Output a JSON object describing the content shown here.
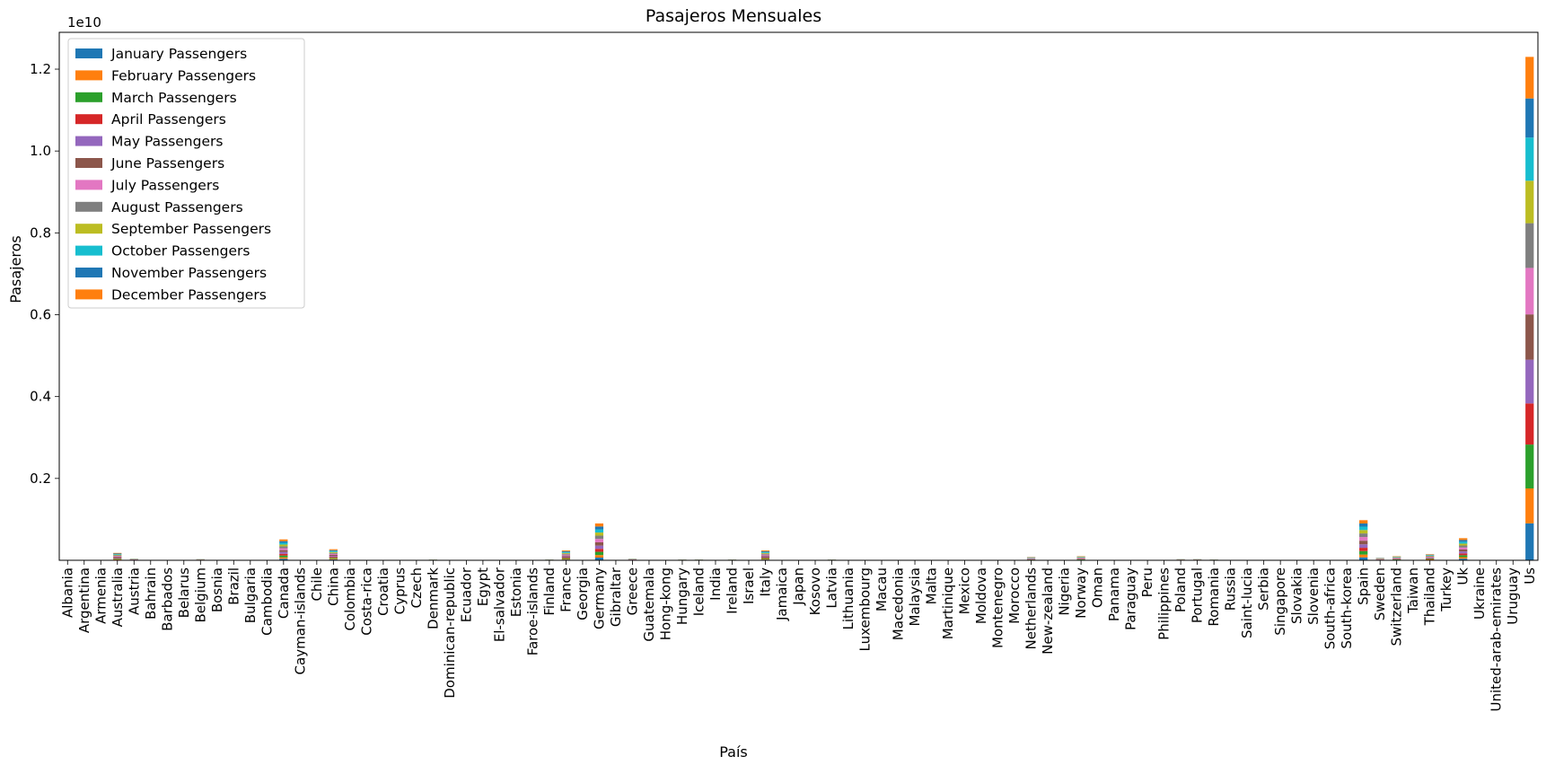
{
  "chart_data": {
    "type": "bar",
    "stacked": true,
    "title": "Pasajeros Mensuales",
    "xlabel": "País",
    "ylabel": "Pasajeros",
    "y_scale_label": "1e10",
    "y_scale_factor": 10000000000,
    "ylim": [
      0,
      1.29
    ],
    "yticks": [
      0.2,
      0.4,
      0.6,
      0.8,
      1.0,
      1.2
    ],
    "ytick_labels": [
      "0.2",
      "0.4",
      "0.6",
      "0.8",
      "1.0",
      "1.2"
    ],
    "grid": false,
    "legend_position": "top-left",
    "categories": [
      "Albania",
      "Argentina",
      "Armenia",
      "Australia",
      "Austria",
      "Bahrain",
      "Barbados",
      "Belarus",
      "Belgium",
      "Bosnia",
      "Brazil",
      "Bulgaria",
      "Cambodia",
      "Canada",
      "Cayman-islands",
      "Chile",
      "China",
      "Colombia",
      "Costa-rica",
      "Croatia",
      "Cyprus",
      "Czech",
      "Denmark",
      "Dominican-republic",
      "Ecuador",
      "Egypt",
      "El-salvador",
      "Estonia",
      "Faroe-islands",
      "Finland",
      "France",
      "Georgia",
      "Germany",
      "Gibraltar",
      "Greece",
      "Guatemala",
      "Hong-kong",
      "Hungary",
      "Iceland",
      "India",
      "Ireland",
      "Israel",
      "Italy",
      "Jamaica",
      "Japan",
      "Kosovo",
      "Latvia",
      "Lithuania",
      "Luxembourg",
      "Macau",
      "Macedonia",
      "Malaysia",
      "Malta",
      "Martinique",
      "Mexico",
      "Moldova",
      "Montenegro",
      "Morocco",
      "Netherlands",
      "New-zealand",
      "Nigeria",
      "Norway",
      "Oman",
      "Panama",
      "Paraguay",
      "Peru",
      "Philippines",
      "Poland",
      "Portugal",
      "Romania",
      "Russia",
      "Saint-lucia",
      "Serbia",
      "Singapore",
      "Slovakia",
      "Slovenia",
      "South-africa",
      "South-korea",
      "Spain",
      "Sweden",
      "Switzerland",
      "Taiwan",
      "Thailand",
      "Turkey",
      "Uk",
      "Ukraine",
      "United-arab-emirates",
      "Uruguay",
      "Us"
    ],
    "series_names": [
      "January Passengers",
      "February Passengers",
      "March Passengers",
      "April Passengers",
      "May Passengers",
      "June Passengers",
      "July Passengers",
      "August Passengers",
      "September Passengers",
      "October Passengers",
      "November Passengers",
      "December Passengers"
    ],
    "series_colors": [
      "#1f77b4",
      "#ff7f0e",
      "#2ca02c",
      "#d62728",
      "#9467bd",
      "#8c564b",
      "#e377c2",
      "#7f7f7f",
      "#bcbd22",
      "#17becf",
      "#1f77b4",
      "#ff7f0e"
    ],
    "country_totals_e10": {
      "Australia": 0.018,
      "Austria": 0.004,
      "Belgium": 0.003,
      "Bulgaria": 0.001,
      "Canada": 0.051,
      "China": 0.027,
      "Croatia": 0.001,
      "Cyprus": 0.001,
      "Czech": 0.001,
      "Denmark": 0.002,
      "Finland": 0.002,
      "France": 0.024,
      "Germany": 0.09,
      "Greece": 0.004,
      "Hungary": 0.002,
      "Iceland": 0.002,
      "Ireland": 0.002,
      "Italy": 0.024,
      "Latvia": 0.002,
      "Netherlands": 0.008,
      "Norway": 0.01,
      "Poland": 0.003,
      "Portugal": 0.003,
      "Romania": 0.002,
      "Spain": 0.098,
      "Sweden": 0.006,
      "Switzerland": 0.01,
      "Thailand": 0.015,
      "Uk": 0.054,
      "Us": 1.23
    },
    "us_monthly_e10": [
      0.0902,
      0.0853,
      0.1073,
      0.1005,
      0.1068,
      0.1107,
      0.1135,
      0.1093,
      0.1038,
      0.1055,
      0.0955,
      0.1016
    ]
  }
}
